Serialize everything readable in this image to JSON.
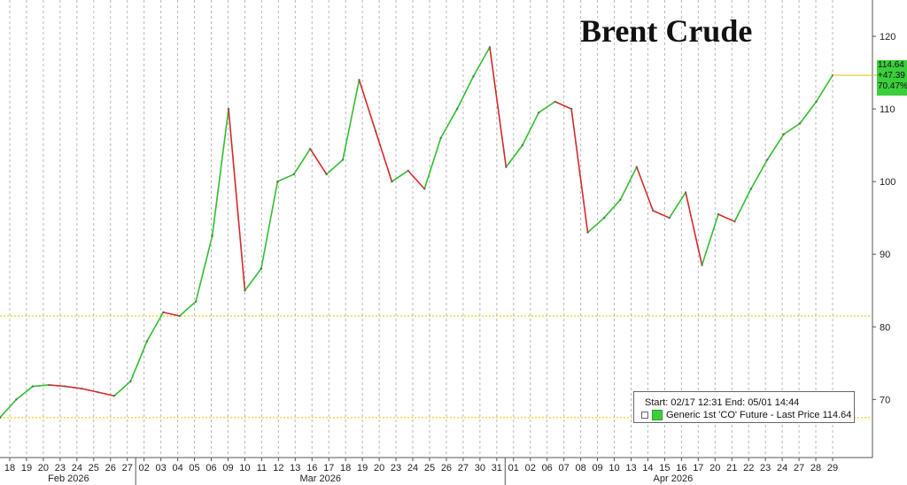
{
  "chart_data": {
    "type": "line",
    "title": "Brent Crude",
    "series": [
      {
        "name": "Generic 1st 'CO' Future - Last Price",
        "points": [
          [
            "02/17",
            67.5
          ],
          [
            "02/18",
            70.0
          ],
          [
            "02/19",
            71.8
          ],
          [
            "02/20",
            72.0
          ],
          [
            "02/23",
            71.8
          ],
          [
            "02/24",
            71.5
          ],
          [
            "02/25",
            71.0
          ],
          [
            "02/26",
            70.5
          ],
          [
            "02/27",
            72.5
          ],
          [
            "03/02",
            78.0
          ],
          [
            "03/03",
            82.0
          ],
          [
            "03/04",
            81.5
          ],
          [
            "03/05",
            83.5
          ],
          [
            "03/06",
            92.5
          ],
          [
            "03/09",
            110.0
          ],
          [
            "03/10",
            85.0
          ],
          [
            "03/11",
            88.0
          ],
          [
            "03/12",
            100.0
          ],
          [
            "03/13",
            101.0
          ],
          [
            "03/16",
            104.5
          ],
          [
            "03/17",
            101.0
          ],
          [
            "03/18",
            103.0
          ],
          [
            "03/19",
            114.0
          ],
          [
            "03/20",
            107.0
          ],
          [
            "03/23",
            100.0
          ],
          [
            "03/24",
            101.5
          ],
          [
            "03/25",
            99.0
          ],
          [
            "03/26",
            106.0
          ],
          [
            "03/27",
            110.0
          ],
          [
            "03/30",
            114.5
          ],
          [
            "03/31",
            118.5
          ],
          [
            "04/01",
            102.0
          ],
          [
            "04/02",
            105.0
          ],
          [
            "04/03",
            109.5
          ],
          [
            "04/06",
            111.0
          ],
          [
            "04/07",
            110.0
          ],
          [
            "04/08",
            93.0
          ],
          [
            "04/09",
            95.0
          ],
          [
            "04/10",
            97.5
          ],
          [
            "04/13",
            102.0
          ],
          [
            "04/14",
            96.0
          ],
          [
            "04/15",
            95.0
          ],
          [
            "04/16",
            98.5
          ],
          [
            "04/17",
            88.5
          ],
          [
            "04/20",
            95.5
          ],
          [
            "04/21",
            94.5
          ],
          [
            "04/22",
            99.0
          ],
          [
            "04/23",
            103.0
          ],
          [
            "04/24",
            106.5
          ],
          [
            "04/27",
            108.0
          ],
          [
            "04/28",
            111.0
          ],
          [
            "04/29",
            114.64
          ]
        ]
      }
    ],
    "y_ticks": [
      70,
      80,
      90,
      100,
      110,
      120
    ],
    "ylim": [
      62,
      125
    ],
    "reference_lines": [
      81.5,
      67.5
    ],
    "x_ticks": [
      "18",
      "19",
      "20",
      "23",
      "24",
      "25",
      "26",
      "27",
      "02",
      "03",
      "04",
      "05",
      "06",
      "09",
      "10",
      "11",
      "12",
      "13",
      "16",
      "17",
      "18",
      "19",
      "20",
      "23",
      "24",
      "25",
      "26",
      "27",
      "30",
      "31",
      "01",
      "02",
      "06",
      "07",
      "08",
      "09",
      "10",
      "13",
      "14",
      "15",
      "16",
      "17",
      "20",
      "21",
      "22",
      "23",
      "24",
      "27",
      "28",
      "29"
    ],
    "month_labels": [
      "Feb 2026",
      "Mar 2026",
      "Apr 2026"
    ],
    "last_value_box": [
      "114.64",
      "+47.39",
      "70.47%"
    ],
    "legend": {
      "line1": "Start: 02/17 12:31 End: 05/01 14:44",
      "line2": "Generic 1st 'CO' Future - Last Price 114.64"
    },
    "up_color": "#2fbf2f",
    "down_color": "#d42a2a",
    "grid": "vertical-dashed"
  }
}
